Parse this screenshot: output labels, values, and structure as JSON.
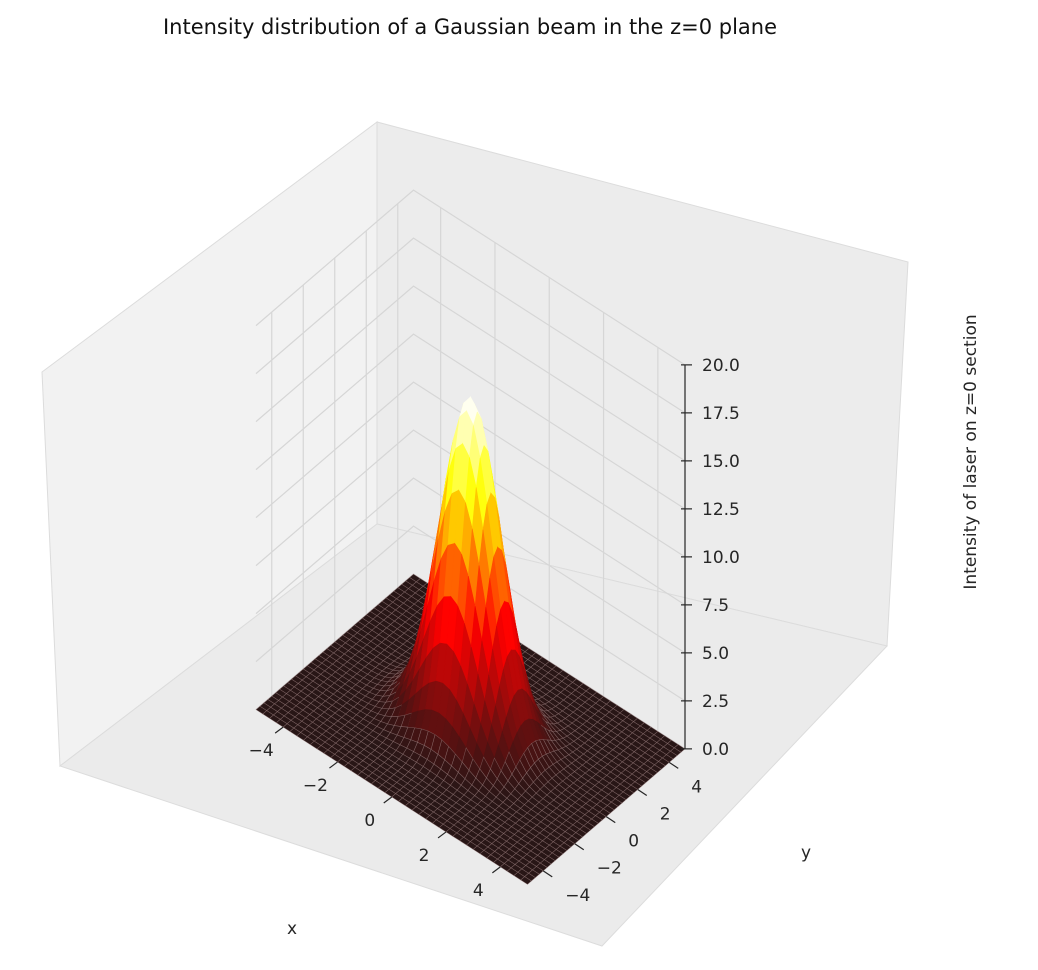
{
  "chart_data": {
    "type": "surface3d",
    "title": "Intensity distribution of a Gaussian beam in the z=0 plane",
    "xlabel": "x",
    "ylabel": "y",
    "zlabel": "Intensity of laser on z=0 section",
    "xlim": [
      -5,
      5
    ],
    "ylim": [
      -5,
      5
    ],
    "zlim": [
      0,
      20
    ],
    "xticks": [
      "−4",
      "−2",
      "0",
      "2",
      "4"
    ],
    "yticks": [
      "−4",
      "−2",
      "0",
      "2",
      "4"
    ],
    "zticks": [
      "0.0",
      "2.5",
      "5.0",
      "7.5",
      "10.0",
      "12.5",
      "15.0",
      "17.5",
      "20.0"
    ],
    "surface": {
      "function": "gaussian",
      "peak_intensity": 17.3,
      "center_x": 0,
      "center_y": 0,
      "waist_radius": 1.4,
      "colormap": "hot"
    },
    "grid": true
  }
}
